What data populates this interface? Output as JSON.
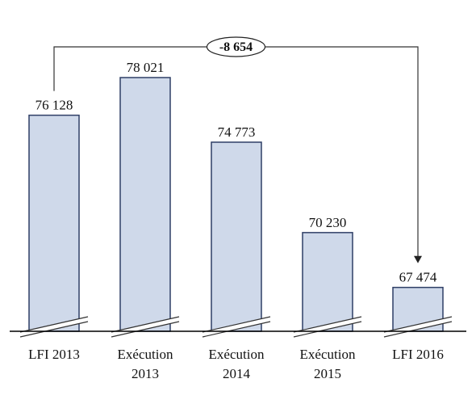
{
  "chart_data": {
    "type": "bar",
    "title": "",
    "xlabel": "",
    "ylabel": "",
    "categories": [
      [
        "LFI 2013"
      ],
      [
        "Exécution",
        "2013"
      ],
      [
        "Exécution",
        "2014"
      ],
      [
        "Exécution",
        "2015"
      ],
      [
        "LFI 2016"
      ]
    ],
    "values": [
      76128,
      78021,
      74773,
      70230,
      67474
    ],
    "value_labels": [
      "76 128",
      "78 021",
      "74 773",
      "70 230",
      "67 474"
    ],
    "axis_break": true,
    "ylim": [
      66000,
      78021
    ],
    "grid": false,
    "annotation": {
      "text": "-8 654",
      "from_category": 0,
      "to_category": 4
    },
    "colors": {
      "bar_fill": "#cfd9ea",
      "bar_stroke": "#2f3f66"
    }
  }
}
